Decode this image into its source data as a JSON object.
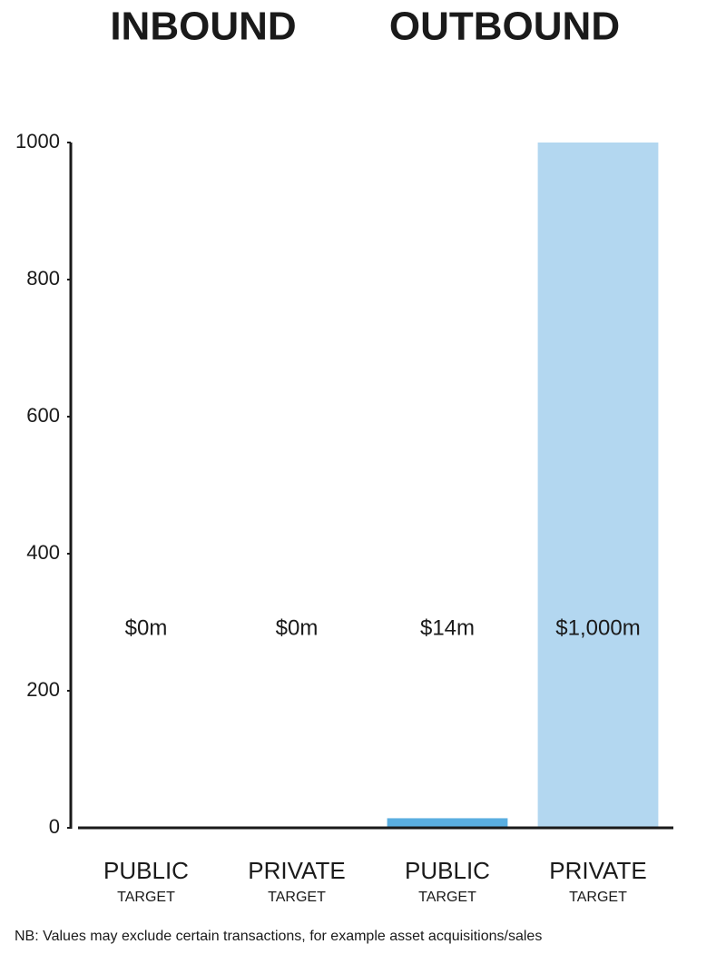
{
  "chart_data": {
    "type": "bar",
    "groups": [
      "INBOUND",
      "OUTBOUND"
    ],
    "categories": [
      "PUBLIC",
      "PRIVATE",
      "PUBLIC",
      "PRIVATE"
    ],
    "category_sublabels": [
      "TARGET",
      "TARGET",
      "TARGET",
      "TARGET"
    ],
    "values": [
      0,
      0,
      14,
      1000
    ],
    "value_labels": [
      "$0m",
      "$0m",
      "$14m",
      "$1,000m"
    ],
    "colors": [
      "#5aaee0",
      "#b3d7f0",
      "#5aaee0",
      "#b3d7f0"
    ],
    "ylim": [
      0,
      1000
    ],
    "yticks": [
      0,
      200,
      400,
      600,
      800,
      1000
    ],
    "note": "NB: Values may exclude certain transactions, for example asset acquisitions/sales"
  }
}
